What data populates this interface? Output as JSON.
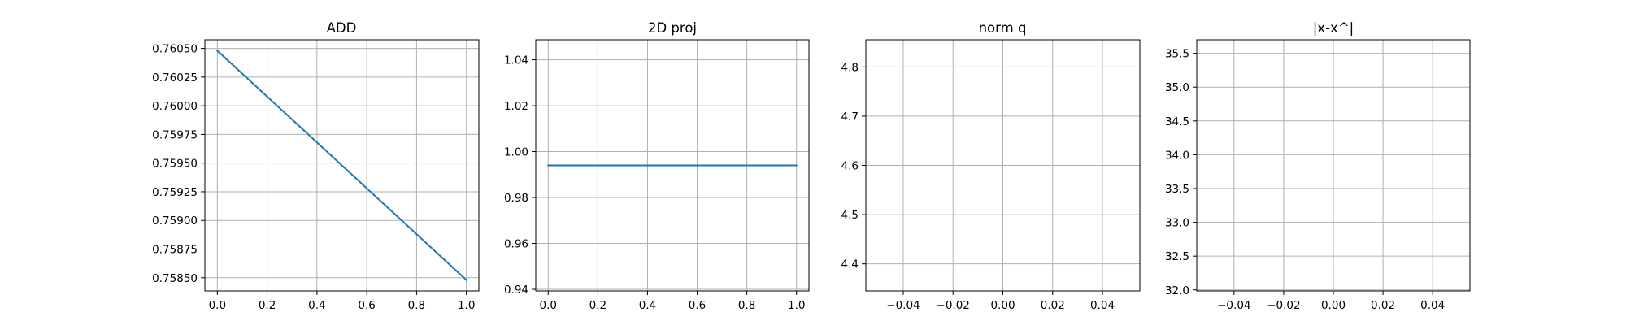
{
  "chart_data": [
    {
      "type": "line",
      "title": "ADD",
      "xlabel": "",
      "ylabel": "",
      "grid": true,
      "x": [
        0.0,
        1.0
      ],
      "series": [
        {
          "values": [
            0.76048,
            0.75848
          ]
        }
      ],
      "xlim": [
        -0.05,
        1.05
      ],
      "ylim": [
        0.758385,
        0.760575
      ],
      "x_ticks": [
        0.0,
        0.2,
        0.4,
        0.6,
        0.8,
        1.0
      ],
      "x_tick_labels": [
        "0.0",
        "0.2",
        "0.4",
        "0.6",
        "0.8",
        "1.0"
      ],
      "y_ticks": [
        0.7585,
        0.75875,
        0.759,
        0.75925,
        0.7595,
        0.75975,
        0.76,
        0.76025,
        0.7605
      ],
      "y_tick_labels": [
        "0.75850",
        "0.75875",
        "0.75900",
        "0.75925",
        "0.75950",
        "0.75975",
        "0.76000",
        "0.76025",
        "0.76050"
      ]
    },
    {
      "type": "line",
      "title": "2D proj",
      "xlabel": "",
      "ylabel": "",
      "grid": true,
      "x": [
        0.0,
        1.0
      ],
      "series": [
        {
          "values": [
            0.994,
            0.994
          ]
        }
      ],
      "xlim": [
        -0.05,
        1.05
      ],
      "ylim": [
        0.9393,
        1.0487
      ],
      "x_ticks": [
        0.0,
        0.2,
        0.4,
        0.6,
        0.8,
        1.0
      ],
      "x_tick_labels": [
        "0.0",
        "0.2",
        "0.4",
        "0.6",
        "0.8",
        "1.0"
      ],
      "y_ticks": [
        0.94,
        0.96,
        0.98,
        1.0,
        1.02,
        1.04
      ],
      "y_tick_labels": [
        "0.94",
        "0.96",
        "0.98",
        "1.00",
        "1.02",
        "1.04"
      ]
    },
    {
      "type": "line",
      "title": "norm q",
      "xlabel": "",
      "ylabel": "",
      "grid": true,
      "x": [],
      "series": [],
      "xlim": [
        -0.055,
        0.055
      ],
      "ylim": [
        4.345,
        4.855
      ],
      "x_ticks": [
        -0.04,
        -0.02,
        0.0,
        0.02,
        0.04
      ],
      "x_tick_labels": [
        "−0.04",
        "−0.02",
        "0.00",
        "0.02",
        "0.04"
      ],
      "y_ticks": [
        4.4,
        4.5,
        4.6,
        4.7,
        4.8
      ],
      "y_tick_labels": [
        "4.4",
        "4.5",
        "4.6",
        "4.7",
        "4.8"
      ]
    },
    {
      "type": "line",
      "title": "|x-x^|",
      "xlabel": "",
      "ylabel": "",
      "grid": true,
      "x": [],
      "series": [],
      "xlim": [
        -0.055,
        0.055
      ],
      "ylim": [
        31.985,
        35.7
      ],
      "x_ticks": [
        -0.04,
        -0.02,
        0.0,
        0.02,
        0.04
      ],
      "x_tick_labels": [
        "−0.04",
        "−0.02",
        "0.00",
        "0.02",
        "0.04"
      ],
      "y_ticks": [
        32.0,
        32.5,
        33.0,
        33.5,
        34.0,
        34.5,
        35.0,
        35.5
      ],
      "y_tick_labels": [
        "32.0",
        "32.5",
        "33.0",
        "33.5",
        "34.0",
        "34.5",
        "35.0",
        "35.5"
      ]
    }
  ],
  "colors": {
    "series": "#1f77b4",
    "grid": "#b0b0b0",
    "axes": "#000000",
    "background": "#ffffff"
  }
}
